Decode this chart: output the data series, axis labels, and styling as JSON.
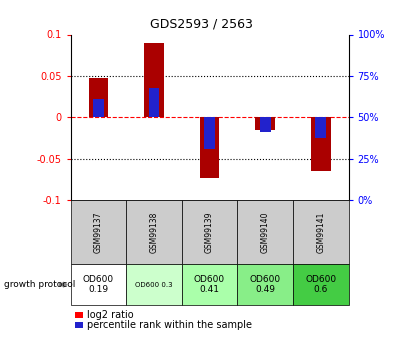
{
  "title": "GDS2593 / 2563",
  "samples": [
    "GSM99137",
    "GSM99138",
    "GSM99139",
    "GSM99140",
    "GSM99141"
  ],
  "log2_ratios": [
    0.048,
    0.09,
    -0.073,
    -0.015,
    -0.065
  ],
  "percentile_ranks": [
    0.022,
    0.035,
    -0.038,
    -0.018,
    -0.025
  ],
  "bar_color": "#aa0000",
  "blue_color": "#2222cc",
  "ylim": [
    -0.1,
    0.1
  ],
  "yticks_left": [
    -0.1,
    -0.05,
    0,
    0.05,
    0.1
  ],
  "yticks_right": [
    0,
    25,
    50,
    75,
    100
  ],
  "yticks_right_pos": [
    -0.1,
    -0.05,
    0,
    0.05,
    0.1
  ],
  "protocol_labels": [
    "OD600\n0.19",
    "OD600 0.3",
    "OD600\n0.41",
    "OD600\n0.49",
    "OD600\n0.6"
  ],
  "protocol_colors": [
    "#ffffff",
    "#ccffcc",
    "#aaffaa",
    "#88ee88",
    "#44cc44"
  ],
  "protocol_small": [
    false,
    true,
    false,
    false,
    false
  ],
  "bar_width": 0.35,
  "growth_protocol_text": "growth protocol",
  "legend_red": "log2 ratio",
  "legend_blue": "percentile rank within the sample"
}
